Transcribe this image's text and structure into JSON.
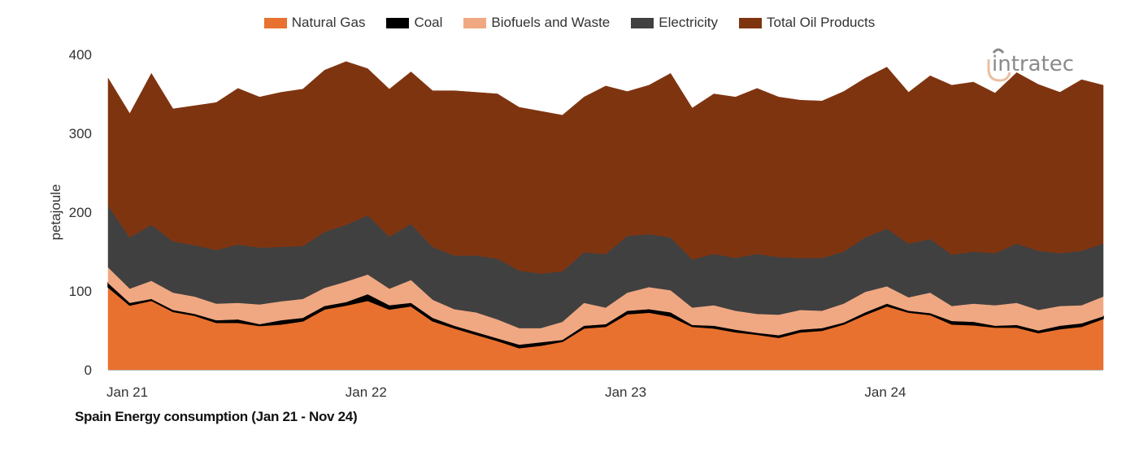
{
  "chart_data": {
    "type": "area",
    "stacked": true,
    "caption": "Spain Energy consumption (Jan 21 - Nov 24)",
    "ylabel": "petajoule",
    "xlabel": "",
    "ylim": [
      0,
      400
    ],
    "yticks": [
      0,
      100,
      200,
      300,
      400
    ],
    "xticks": [
      {
        "at": "2021-01",
        "label": "Jan 21"
      },
      {
        "at": "2022-01",
        "label": "Jan 22"
      },
      {
        "at": "2023-01",
        "label": "Jan 23"
      },
      {
        "at": "2024-01",
        "label": "Jan 24"
      }
    ],
    "grid": false,
    "legend_position": "top",
    "x": [
      "2021-01",
      "2021-02",
      "2021-03",
      "2021-04",
      "2021-05",
      "2021-06",
      "2021-07",
      "2021-08",
      "2021-09",
      "2021-10",
      "2021-11",
      "2021-12",
      "2022-01",
      "2022-02",
      "2022-03",
      "2022-04",
      "2022-05",
      "2022-06",
      "2022-07",
      "2022-08",
      "2022-09",
      "2022-10",
      "2022-11",
      "2022-12",
      "2023-01",
      "2023-02",
      "2023-03",
      "2023-04",
      "2023-05",
      "2023-06",
      "2023-07",
      "2023-08",
      "2023-09",
      "2023-10",
      "2023-11",
      "2023-12",
      "2024-01",
      "2024-02",
      "2024-03",
      "2024-04",
      "2024-05",
      "2024-06",
      "2024-07",
      "2024-08",
      "2024-09",
      "2024-10",
      "2024-11"
    ],
    "series": [
      {
        "name": "Natural Gas",
        "color": "#E8712F",
        "values": [
          105,
          82,
          88,
          74,
          69,
          60,
          60,
          56,
          58,
          62,
          77,
          82,
          88,
          77,
          81,
          62,
          53,
          45,
          37,
          28,
          31,
          36,
          53,
          55,
          71,
          73,
          68,
          55,
          53,
          48,
          45,
          41,
          48,
          50,
          58,
          70,
          81,
          73,
          70,
          58,
          57,
          54,
          54,
          47,
          52,
          55,
          65
        ]
      },
      {
        "name": "Coal",
        "color": "#000000",
        "values": [
          5,
          3,
          2,
          2,
          2,
          3,
          4,
          2,
          5,
          4,
          4,
          4,
          8,
          5,
          4,
          4,
          3,
          3,
          3,
          4,
          4,
          2,
          3,
          3,
          4,
          4,
          5,
          2,
          3,
          3,
          2,
          3,
          3,
          3,
          2,
          3,
          3,
          2,
          2,
          4,
          4,
          2,
          3,
          3,
          4,
          4,
          3
        ]
      },
      {
        "name": "Biofuels and Waste",
        "color": "#F0A882",
        "values": [
          20,
          18,
          23,
          22,
          22,
          21,
          21,
          25,
          24,
          24,
          23,
          26,
          25,
          21,
          29,
          23,
          21,
          25,
          24,
          21,
          18,
          23,
          29,
          21,
          23,
          28,
          28,
          22,
          26,
          24,
          24,
          26,
          25,
          22,
          24,
          26,
          22,
          17,
          26,
          19,
          23,
          26,
          28,
          26,
          25,
          23,
          25
        ]
      },
      {
        "name": "Electricity",
        "color": "#404040",
        "values": [
          78,
          65,
          71,
          65,
          65,
          68,
          74,
          72,
          69,
          67,
          71,
          72,
          75,
          66,
          71,
          67,
          68,
          72,
          77,
          73,
          69,
          64,
          64,
          68,
          72,
          67,
          67,
          61,
          65,
          67,
          76,
          73,
          66,
          67,
          66,
          69,
          73,
          68,
          68,
          65,
          66,
          66,
          75,
          75,
          67,
          69,
          67
        ]
      },
      {
        "name": "Total Oil Products",
        "color": "#7F3410",
        "values": [
          162,
          157,
          192,
          168,
          177,
          187,
          198,
          191,
          196,
          199,
          205,
          207,
          186,
          187,
          193,
          198,
          209,
          207,
          209,
          207,
          206,
          198,
          197,
          213,
          183,
          189,
          208,
          192,
          203,
          204,
          210,
          203,
          200,
          199,
          203,
          202,
          205,
          192,
          207,
          215,
          215,
          203,
          217,
          211,
          204,
          217,
          201
        ]
      }
    ]
  },
  "logo": {
    "text": "intratec",
    "colors": {
      "text": "#8a8a8a",
      "accent": "#e8bfa3"
    }
  }
}
